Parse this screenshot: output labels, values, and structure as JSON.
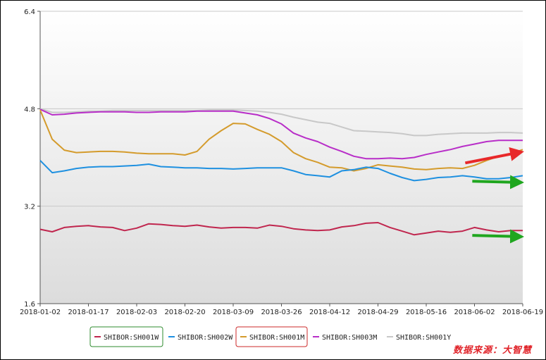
{
  "source_note": "数据来源：大智慧",
  "colors": {
    "grid": "#c8c8c8",
    "axis": "#555555",
    "bg_top": "#ffffff",
    "bg_bottom": "#dcdcdc",
    "arrow_up": "#e8282a",
    "arrow_flat": "#1fa61f"
  },
  "chart_data": {
    "type": "line",
    "title": "",
    "xlabel": "",
    "ylabel": "",
    "ylim": [
      1.6,
      6.4
    ],
    "yticks": [
      "6.4",
      "4.8",
      "3.2",
      "1.6"
    ],
    "xticks": [
      "2018-01-02",
      "2018-01-17",
      "2018-02-03",
      "2018-02-20",
      "2018-03-09",
      "2018-03-26",
      "2018-04-12",
      "2018-04-29",
      "2018-05-16",
      "2018-06-02",
      "2018-06-19"
    ],
    "grid": true,
    "legend_position": "bottom",
    "x": [
      "2018-01-02",
      "2018-01-06",
      "2018-01-10",
      "2018-01-14",
      "2018-01-17",
      "2018-01-21",
      "2018-01-25",
      "2018-01-29",
      "2018-02-03",
      "2018-02-07",
      "2018-02-11",
      "2018-02-15",
      "2018-02-20",
      "2018-02-24",
      "2018-02-28",
      "2018-03-04",
      "2018-03-09",
      "2018-03-13",
      "2018-03-17",
      "2018-03-21",
      "2018-03-26",
      "2018-03-30",
      "2018-04-03",
      "2018-04-07",
      "2018-04-12",
      "2018-04-16",
      "2018-04-20",
      "2018-04-24",
      "2018-04-29",
      "2018-05-03",
      "2018-05-07",
      "2018-05-11",
      "2018-05-16",
      "2018-05-20",
      "2018-05-24",
      "2018-05-28",
      "2018-06-02",
      "2018-06-06",
      "2018-06-10",
      "2018-06-14",
      "2018-06-19"
    ],
    "series": [
      {
        "name": "SHIBOR:SH001W",
        "color": "#c0264e",
        "values": [
          2.82,
          2.78,
          2.85,
          2.87,
          2.88,
          2.86,
          2.85,
          2.8,
          2.84,
          2.91,
          2.9,
          2.88,
          2.87,
          2.89,
          2.86,
          2.84,
          2.85,
          2.85,
          2.84,
          2.89,
          2.87,
          2.83,
          2.81,
          2.8,
          2.81,
          2.86,
          2.88,
          2.92,
          2.93,
          2.85,
          2.79,
          2.73,
          2.76,
          2.79,
          2.77,
          2.79,
          2.85,
          2.81,
          2.78,
          2.8,
          2.8
        ]
      },
      {
        "name": "SHIBOR:SH002W",
        "color": "#1e90e0",
        "values": [
          3.95,
          3.75,
          3.78,
          3.82,
          3.84,
          3.85,
          3.85,
          3.86,
          3.87,
          3.89,
          3.85,
          3.84,
          3.83,
          3.83,
          3.82,
          3.82,
          3.81,
          3.82,
          3.83,
          3.83,
          3.83,
          3.78,
          3.72,
          3.7,
          3.68,
          3.78,
          3.8,
          3.84,
          3.82,
          3.74,
          3.67,
          3.62,
          3.64,
          3.67,
          3.68,
          3.7,
          3.68,
          3.65,
          3.65,
          3.67,
          3.7
        ]
      },
      {
        "name": "SHIBOR:SH001M",
        "color": "#d49b2c",
        "values": [
          4.78,
          4.3,
          4.12,
          4.08,
          4.09,
          4.1,
          4.1,
          4.09,
          4.07,
          4.06,
          4.06,
          4.06,
          4.04,
          4.1,
          4.3,
          4.44,
          4.56,
          4.55,
          4.46,
          4.38,
          4.26,
          4.08,
          3.98,
          3.92,
          3.84,
          3.83,
          3.78,
          3.82,
          3.88,
          3.86,
          3.84,
          3.81,
          3.8,
          3.82,
          3.83,
          3.82,
          3.87,
          3.95,
          4.02,
          4.06,
          4.13
        ]
      },
      {
        "name": "SHIBOR:SH003M",
        "color": "#b82ec8",
        "values": [
          4.79,
          4.7,
          4.71,
          4.73,
          4.74,
          4.75,
          4.75,
          4.75,
          4.74,
          4.74,
          4.75,
          4.75,
          4.75,
          4.76,
          4.76,
          4.76,
          4.76,
          4.73,
          4.7,
          4.64,
          4.55,
          4.4,
          4.32,
          4.26,
          4.17,
          4.1,
          4.02,
          3.98,
          3.98,
          3.99,
          3.98,
          4.0,
          4.05,
          4.09,
          4.13,
          4.18,
          4.22,
          4.26,
          4.28,
          4.28,
          4.28
        ]
      },
      {
        "name": "SHIBOR:SH001Y",
        "color": "#c8c8c8",
        "values": [
          4.8,
          4.74,
          4.74,
          4.75,
          4.76,
          4.76,
          4.77,
          4.77,
          4.77,
          4.77,
          4.77,
          4.77,
          4.77,
          4.77,
          4.78,
          4.78,
          4.78,
          4.77,
          4.76,
          4.74,
          4.71,
          4.66,
          4.62,
          4.58,
          4.56,
          4.5,
          4.44,
          4.43,
          4.42,
          4.41,
          4.39,
          4.36,
          4.36,
          4.38,
          4.39,
          4.4,
          4.4,
          4.4,
          4.41,
          4.41,
          4.4
        ]
      }
    ]
  }
}
